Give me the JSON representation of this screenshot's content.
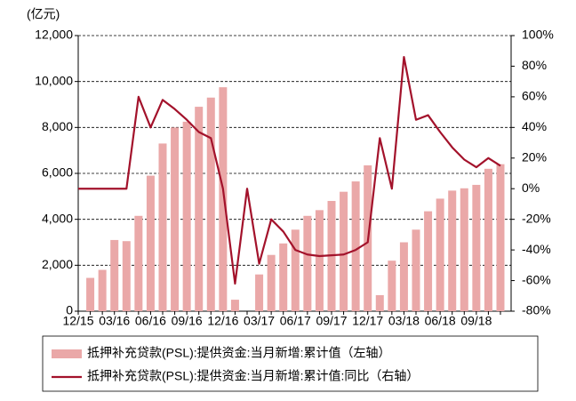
{
  "chart_data": {
    "type": "bar_line",
    "y_unit_label": "(亿元)",
    "categories": [
      "12/15",
      null,
      null,
      "03/16",
      null,
      null,
      "06/16",
      null,
      null,
      "09/16",
      null,
      null,
      "12/16",
      null,
      null,
      "03/17",
      null,
      null,
      "06/17",
      null,
      null,
      "09/17",
      null,
      null,
      "12/17",
      null,
      null,
      "03/18",
      null,
      null,
      "06/18",
      null,
      null,
      "09/18",
      null,
      null
    ],
    "series": [
      {
        "name": "抵押补充贷款(PSL):提供资金:当月新增:累计值（左轴）",
        "type": "bar",
        "color": "#eaa8a8",
        "values": [
          null,
          1450,
          1800,
          3100,
          3050,
          4150,
          5900,
          7300,
          8000,
          8250,
          8900,
          9300,
          9750,
          500,
          null,
          1600,
          2450,
          2950,
          3550,
          4150,
          4400,
          4800,
          5200,
          5650,
          6350,
          700,
          2200,
          3000,
          3550,
          4350,
          4900,
          5250,
          5350,
          5500,
          6200,
          6400
        ]
      },
      {
        "name": "抵押补充贷款(PSL):提供资金:当月新增:累计值:同比（右轴）",
        "type": "line",
        "axis": "y2",
        "color": "#a3122b",
        "values": [
          0,
          0,
          0,
          0,
          0,
          60,
          40,
          58,
          52,
          45,
          37,
          33,
          0,
          -62,
          0,
          -49,
          -20,
          -28,
          -40,
          -43,
          -44,
          -43.5,
          -43,
          -40,
          -35,
          33,
          0,
          86,
          45,
          48,
          37,
          27,
          19,
          14,
          20,
          15
        ]
      }
    ],
    "ylim": [
      0,
      12000
    ],
    "yticks": [
      0,
      {
        "value": 2000,
        "label": "2,000"
      },
      {
        "value": 4000,
        "label": "4,000"
      },
      {
        "value": 6000,
        "label": "6,000"
      },
      {
        "value": 8000,
        "label": "8,000"
      },
      {
        "value": 10000,
        "label": "10,000"
      },
      {
        "value": 12000,
        "label": "12,000"
      }
    ],
    "y2lim": [
      -80,
      100
    ],
    "y2ticks": [
      {
        "value": -80,
        "label": "-80%"
      },
      {
        "value": -60,
        "label": "-60%"
      },
      {
        "value": -40,
        "label": "-40%"
      },
      {
        "value": -20,
        "label": "-20%"
      },
      {
        "value": 0,
        "label": "0%"
      },
      {
        "value": 20,
        "label": "20%"
      },
      {
        "value": 40,
        "label": "40%"
      },
      {
        "value": 60,
        "label": "60%"
      },
      {
        "value": 80,
        "label": "80%"
      },
      {
        "value": 100,
        "label": "100%"
      }
    ],
    "grid": true,
    "legend": "bottom"
  }
}
